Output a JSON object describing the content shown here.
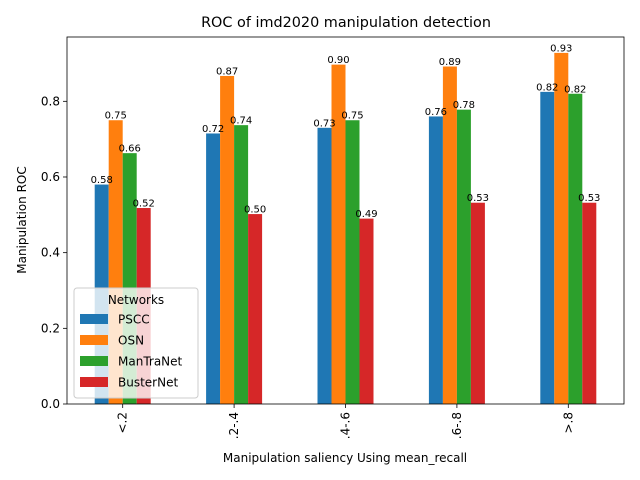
{
  "chart_data": {
    "type": "bar",
    "title": "ROC of imd2020 manipulation detection",
    "xlabel": "Manipulation saliency Using mean_recall",
    "ylabel": "Manipulation ROC",
    "categories": [
      "<.2",
      ".2-.4",
      ".4-.6",
      ".6-.8",
      ">.8"
    ],
    "ylim": [
      0,
      0.97
    ],
    "yticks": [
      "0.0",
      "0.2",
      "0.4",
      "0.6",
      "0.8"
    ],
    "grid": false,
    "legend": {
      "title": "Networks",
      "placement": "lower-left"
    },
    "series": [
      {
        "name": "PSCC",
        "color": "#1f77b4",
        "values": [
          0.58,
          0.715,
          0.73,
          0.76,
          0.825
        ],
        "labels": [
          "0.58",
          "0.72",
          "0.73",
          "0.76",
          "0.82"
        ]
      },
      {
        "name": "OSN",
        "color": "#ff7f0e",
        "values": [
          0.75,
          0.867,
          0.897,
          0.892,
          0.928
        ],
        "labels": [
          "0.75",
          "0.87",
          "0.90",
          "0.89",
          "0.93"
        ]
      },
      {
        "name": "ManTraNet",
        "color": "#2ca02c",
        "values": [
          0.663,
          0.737,
          0.75,
          0.778,
          0.82
        ],
        "labels": [
          "0.66",
          "0.74",
          "0.75",
          "0.78",
          "0.82"
        ]
      },
      {
        "name": "BusterNet",
        "color": "#d62728",
        "values": [
          0.518,
          0.502,
          0.49,
          0.532,
          0.532
        ],
        "labels": [
          "0.52",
          "0.50",
          "0.49",
          "0.53",
          "0.53"
        ]
      }
    ]
  }
}
